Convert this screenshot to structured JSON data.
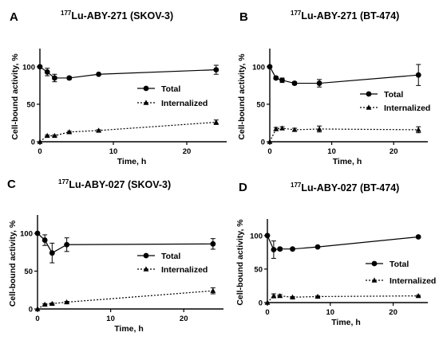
{
  "colors": {
    "series": "#000000",
    "background": "#ffffff"
  },
  "chart_data": [
    {
      "letter": "A",
      "title_sup": "177",
      "title_rest": "Lu-ABY-271 (SKOV-3)",
      "type": "line",
      "xlabel": "Time, h",
      "ylabel": "Cell-bound activity, %",
      "xlim": [
        0,
        25
      ],
      "ylim": [
        0,
        120
      ],
      "xticks": [
        0,
        10,
        20
      ],
      "yticks": [
        0,
        50,
        100
      ],
      "legend_position": "right-middle",
      "series": [
        {
          "name": "Total",
          "marker": "circle",
          "line": "solid",
          "x": [
            0,
            1,
            2,
            4,
            8,
            24
          ],
          "y": [
            100,
            93,
            85,
            85,
            90,
            96
          ],
          "err": [
            0,
            5,
            5,
            2,
            1,
            6
          ]
        },
        {
          "name": "Internalized",
          "marker": "triangle",
          "line": "dotted",
          "x": [
            0,
            1,
            2,
            4,
            8,
            24
          ],
          "y": [
            0,
            8,
            8,
            13,
            15,
            26
          ],
          "err": [
            0,
            1,
            1,
            1,
            1,
            3
          ]
        }
      ]
    },
    {
      "letter": "B",
      "title_sup": "177",
      "title_rest": "Lu-ABY-271 (BT-474)",
      "type": "line",
      "xlabel": "Time, h",
      "ylabel": "Cell-bound activity, %",
      "xlim": [
        0,
        25
      ],
      "ylim": [
        0,
        120
      ],
      "xticks": [
        0,
        10,
        20
      ],
      "yticks": [
        0,
        50,
        100
      ],
      "legend_position": "right-middle",
      "series": [
        {
          "name": "Total",
          "marker": "circle",
          "line": "solid",
          "x": [
            0,
            1,
            2,
            4,
            8,
            24
          ],
          "y": [
            100,
            85,
            82,
            78,
            78,
            89
          ],
          "err": [
            0,
            2,
            3,
            2,
            5,
            14
          ]
        },
        {
          "name": "Internalized",
          "marker": "triangle",
          "line": "dotted",
          "x": [
            0,
            1,
            2,
            4,
            8,
            24
          ],
          "y": [
            0,
            17,
            18,
            16,
            17,
            16
          ],
          "err": [
            0,
            2,
            2,
            2,
            4,
            4
          ]
        }
      ]
    },
    {
      "letter": "C",
      "title_sup": "177",
      "title_rest": "Lu-ABY-027 (SKOV-3)",
      "type": "line",
      "xlabel": "Time, h",
      "ylabel": "Cell-bound activity, %",
      "xlim": [
        0,
        25
      ],
      "ylim": [
        0,
        120
      ],
      "xticks": [
        0,
        10,
        20
      ],
      "yticks": [
        0,
        50,
        100
      ],
      "legend_position": "right-middle",
      "series": [
        {
          "name": "Total",
          "marker": "circle",
          "line": "solid",
          "x": [
            0,
            1,
            2,
            4,
            24
          ],
          "y": [
            100,
            91,
            74,
            85,
            86
          ],
          "err": [
            0,
            7,
            13,
            9,
            7
          ]
        },
        {
          "name": "Internalized",
          "marker": "triangle",
          "line": "dotted",
          "x": [
            0,
            1,
            2,
            4,
            24
          ],
          "y": [
            0,
            6,
            7,
            9,
            24
          ],
          "err": [
            0,
            1,
            1,
            1,
            4
          ]
        }
      ]
    },
    {
      "letter": "D",
      "title_sup": "177",
      "title_rest": "Lu-ABY-027 (BT-474)",
      "type": "line",
      "xlabel": "Time, h",
      "ylabel": "Cell-bound activity, %",
      "xlim": [
        0,
        25
      ],
      "ylim": [
        0,
        120
      ],
      "xticks": [
        0,
        10,
        20
      ],
      "yticks": [
        0,
        50,
        100
      ],
      "legend_position": "right-middle",
      "series": [
        {
          "name": "Total",
          "marker": "circle",
          "line": "solid",
          "x": [
            0,
            1,
            2,
            4,
            8,
            24
          ],
          "y": [
            100,
            79,
            80,
            80,
            83,
            98
          ],
          "err": [
            0,
            13,
            2,
            1,
            1,
            1
          ]
        },
        {
          "name": "Internalized",
          "marker": "triangle",
          "line": "dotted",
          "x": [
            0,
            1,
            2,
            4,
            8,
            24
          ],
          "y": [
            0,
            10,
            10,
            8,
            9,
            10
          ],
          "err": [
            0,
            3,
            2,
            1,
            1,
            1
          ]
        }
      ]
    }
  ]
}
